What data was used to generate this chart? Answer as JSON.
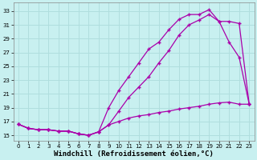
{
  "background_color": "#c8f0f0",
  "grid_color": "#b0dede",
  "line_color": "#aa00aa",
  "xlabel": "Windchill (Refroidissement éolien,°C)",
  "xlabel_fontsize": 6.5,
  "ylabel_ticks": [
    15,
    17,
    19,
    21,
    23,
    25,
    27,
    29,
    31,
    33
  ],
  "xticks": [
    0,
    1,
    2,
    3,
    4,
    5,
    6,
    7,
    8,
    9,
    10,
    11,
    12,
    13,
    14,
    15,
    16,
    17,
    18,
    19,
    20,
    21,
    22,
    23
  ],
  "ylim": [
    14.2,
    34.2
  ],
  "xlim": [
    -0.5,
    23.5
  ],
  "line1_x": [
    0,
    1,
    2,
    3,
    4,
    5,
    6,
    7,
    8,
    9,
    10,
    11,
    12,
    13,
    14,
    15,
    16,
    17,
    18,
    19,
    20,
    21,
    22,
    23
  ],
  "line1_y": [
    16.6,
    16.0,
    15.8,
    15.8,
    15.6,
    15.6,
    15.2,
    15.0,
    15.5,
    19.0,
    21.5,
    23.5,
    25.5,
    27.5,
    28.5,
    30.3,
    31.8,
    32.5,
    32.5,
    33.2,
    31.5,
    28.5,
    26.3,
    19.5
  ],
  "line2_x": [
    0,
    1,
    2,
    3,
    4,
    5,
    6,
    7,
    8,
    9,
    10,
    11,
    12,
    13,
    14,
    15,
    16,
    17,
    18,
    19,
    20,
    21,
    22,
    23
  ],
  "line2_y": [
    16.6,
    16.0,
    15.8,
    15.8,
    15.6,
    15.6,
    15.2,
    15.0,
    15.5,
    16.5,
    18.5,
    20.5,
    22.0,
    23.5,
    25.5,
    27.3,
    29.5,
    31.0,
    31.7,
    32.5,
    31.5,
    31.5,
    31.2,
    19.5
  ],
  "line3_x": [
    0,
    1,
    2,
    3,
    4,
    5,
    6,
    7,
    8,
    9,
    10,
    11,
    12,
    13,
    14,
    15,
    16,
    17,
    18,
    19,
    20,
    21,
    22,
    23
  ],
  "line3_y": [
    16.6,
    16.0,
    15.8,
    15.8,
    15.6,
    15.6,
    15.2,
    15.0,
    15.5,
    16.5,
    17.0,
    17.5,
    17.8,
    18.0,
    18.3,
    18.5,
    18.8,
    19.0,
    19.2,
    19.5,
    19.7,
    19.8,
    19.5,
    19.5
  ]
}
